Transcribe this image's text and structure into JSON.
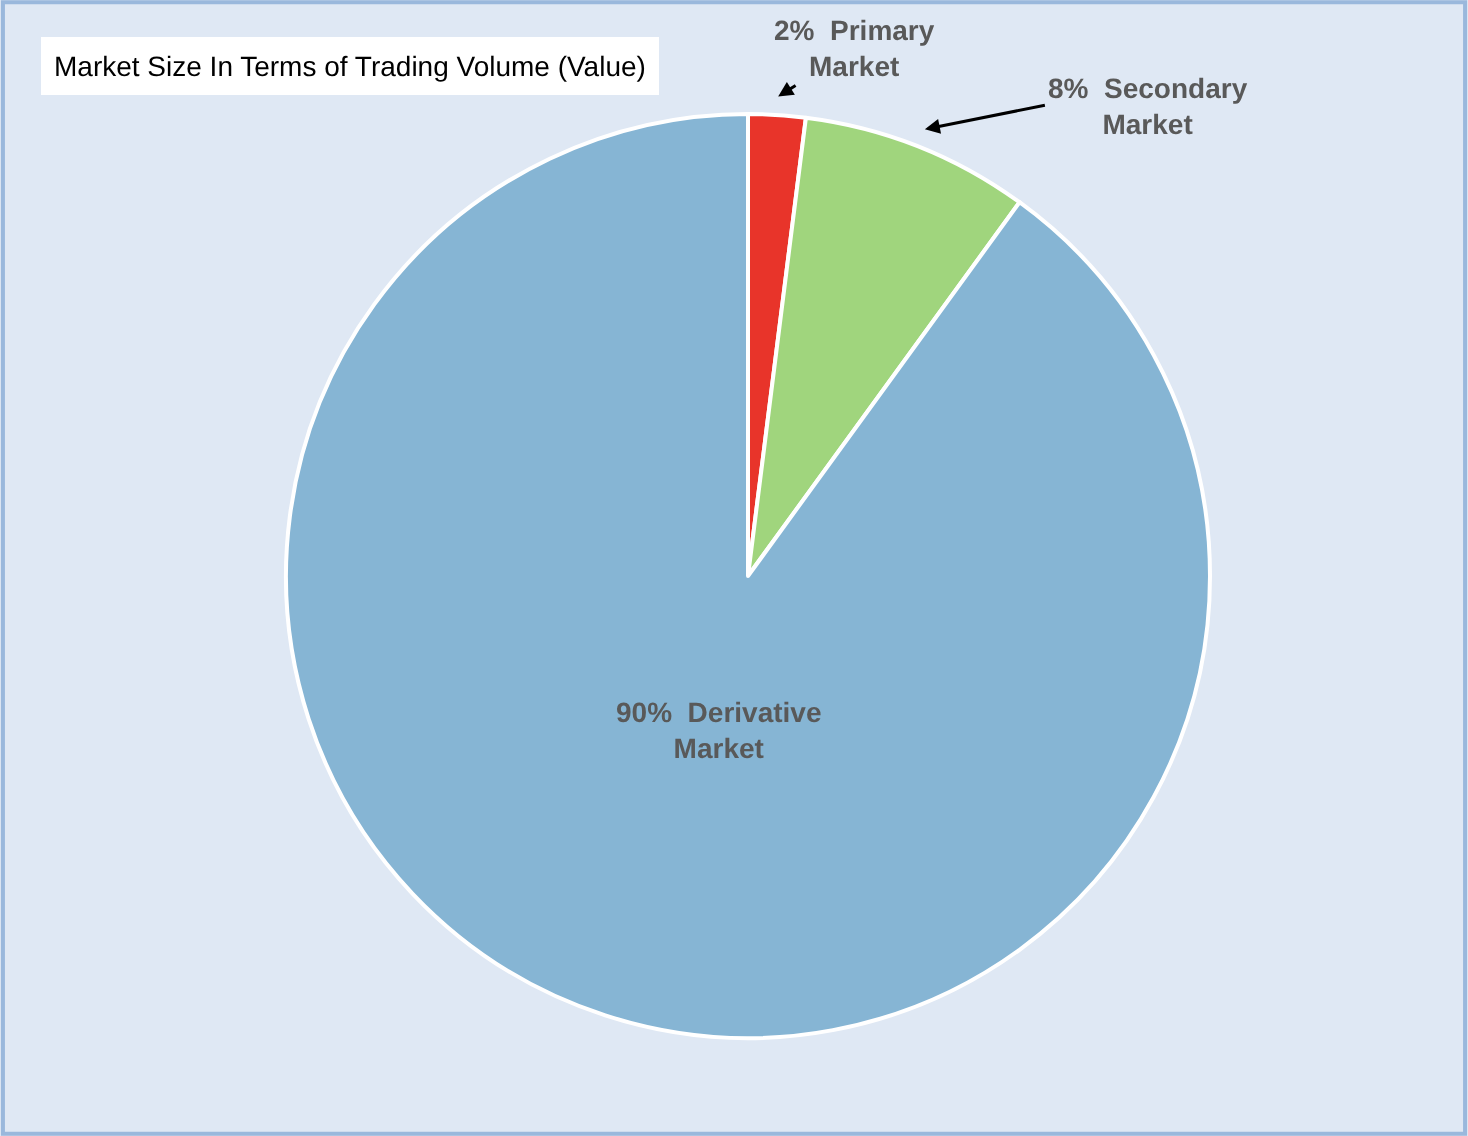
{
  "chart_data": {
    "type": "pie",
    "title": "Market Size In Terms of Trading Volume (Value)",
    "categories": [
      "Primary Market",
      "Secondary Market",
      "Derivative Market"
    ],
    "values": [
      2,
      8,
      90
    ],
    "colors": [
      "#e8342a",
      "#a0d57d",
      "#86b5d4"
    ],
    "value_labels": [
      "2%",
      "8%",
      "90%"
    ],
    "legend": false
  }
}
